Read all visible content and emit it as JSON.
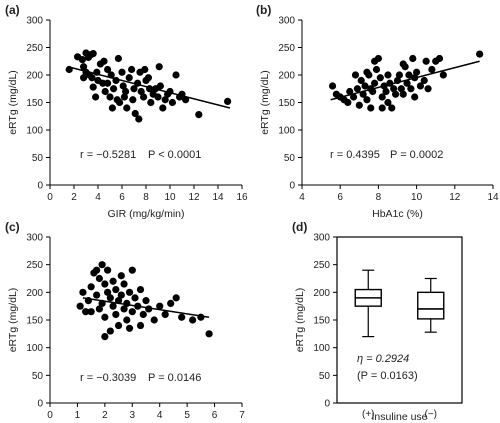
{
  "chart_data": [
    {
      "type": "scatter",
      "panel": "(a)",
      "xlabel": "GIR (mg/kg/min)",
      "ylabel": "eRTg (mg/dL)",
      "xlim": [
        0,
        16
      ],
      "ylim": [
        0,
        300
      ],
      "xticks": [
        0,
        2,
        4,
        6,
        8,
        10,
        12,
        14,
        16
      ],
      "yticks": [
        0,
        50,
        100,
        150,
        200,
        250,
        300
      ],
      "stat_r": "r = −0.5281",
      "stat_p": "P < 0.0001",
      "trendline": {
        "x": [
          1.5,
          15.0
        ],
        "y": [
          215,
          140
        ]
      },
      "points": [
        [
          1.6,
          210
        ],
        [
          2.3,
          233
        ],
        [
          2.7,
          228
        ],
        [
          2.8,
          215
        ],
        [
          3.0,
          240
        ],
        [
          3.2,
          232
        ],
        [
          3.4,
          237
        ],
        [
          3.6,
          239
        ],
        [
          3.3,
          200
        ],
        [
          3.5,
          195
        ],
        [
          3.6,
          178
        ],
        [
          3.9,
          205
        ],
        [
          4.0,
          190
        ],
        [
          4.2,
          220
        ],
        [
          4.4,
          185
        ],
        [
          4.6,
          170
        ],
        [
          4.8,
          210
        ],
        [
          5.0,
          160
        ],
        [
          5.1,
          200
        ],
        [
          5.3,
          175
        ],
        [
          5.5,
          190
        ],
        [
          5.7,
          230
        ],
        [
          5.8,
          150
        ],
        [
          6.0,
          205
        ],
        [
          6.1,
          180
        ],
        [
          6.3,
          170
        ],
        [
          6.4,
          140
        ],
        [
          6.6,
          195
        ],
        [
          6.8,
          210
        ],
        [
          7.0,
          175
        ],
        [
          7.1,
          130
        ],
        [
          7.3,
          185
        ],
        [
          7.5,
          205
        ],
        [
          7.6,
          170
        ],
        [
          7.8,
          160
        ],
        [
          8.0,
          190
        ],
        [
          8.2,
          195
        ],
        [
          8.4,
          150
        ],
        [
          8.6,
          165
        ],
        [
          8.8,
          175
        ],
        [
          9.0,
          160
        ],
        [
          9.2,
          180
        ],
        [
          9.4,
          140
        ],
        [
          9.6,
          155
        ],
        [
          9.8,
          165
        ],
        [
          10.0,
          170
        ],
        [
          10.2,
          150
        ],
        [
          10.5,
          200
        ],
        [
          10.8,
          160
        ],
        [
          11.0,
          165
        ],
        [
          11.3,
          155
        ],
        [
          12.4,
          128
        ],
        [
          14.8,
          152
        ],
        [
          3.0,
          205
        ],
        [
          4.8,
          185
        ],
        [
          5.2,
          140
        ],
        [
          5.6,
          155
        ],
        [
          6.2,
          160
        ],
        [
          7.9,
          210
        ],
        [
          8.3,
          175
        ],
        [
          9.1,
          215
        ],
        [
          4.5,
          225
        ],
        [
          3.8,
          160
        ],
        [
          7.4,
          120
        ],
        [
          6.9,
          155
        ],
        [
          2.8,
          195
        ]
      ]
    },
    {
      "type": "scatter",
      "panel": "(b)",
      "xlabel": "HbA1c (%)",
      "ylabel": "eRTg (mg/dL)",
      "xlim": [
        4,
        14
      ],
      "ylim": [
        0,
        300
      ],
      "xticks": [
        4,
        6,
        8,
        10,
        12,
        14
      ],
      "yticks": [
        0,
        50,
        100,
        150,
        200,
        250,
        300
      ],
      "stat_r": "r = 0.4395",
      "stat_p": "P = 0.0002",
      "trendline": {
        "x": [
          5.5,
          13.3
        ],
        "y": [
          155,
          225
        ]
      },
      "points": [
        [
          5.6,
          180
        ],
        [
          5.8,
          165
        ],
        [
          6.0,
          160
        ],
        [
          6.2,
          155
        ],
        [
          6.4,
          150
        ],
        [
          6.5,
          170
        ],
        [
          6.7,
          160
        ],
        [
          6.9,
          175
        ],
        [
          7.0,
          145
        ],
        [
          7.1,
          190
        ],
        [
          7.2,
          165
        ],
        [
          7.3,
          180
        ],
        [
          7.4,
          155
        ],
        [
          7.5,
          200
        ],
        [
          7.6,
          175
        ],
        [
          7.7,
          170
        ],
        [
          7.8,
          185
        ],
        [
          7.9,
          210
        ],
        [
          8.0,
          230
        ],
        [
          8.1,
          195
        ],
        [
          8.2,
          160
        ],
        [
          8.3,
          180
        ],
        [
          8.4,
          170
        ],
        [
          8.5,
          200
        ],
        [
          8.6,
          185
        ],
        [
          8.7,
          140
        ],
        [
          8.8,
          175
        ],
        [
          8.9,
          165
        ],
        [
          9.0,
          190
        ],
        [
          9.1,
          200
        ],
        [
          9.2,
          175
        ],
        [
          9.3,
          165
        ],
        [
          9.4,
          215
        ],
        [
          9.5,
          185
        ],
        [
          9.6,
          200
        ],
        [
          9.7,
          175
        ],
        [
          9.8,
          230
        ],
        [
          9.9,
          195
        ],
        [
          10.0,
          205
        ],
        [
          10.2,
          180
        ],
        [
          10.4,
          190
        ],
        [
          10.6,
          175
        ],
        [
          10.8,
          210
        ],
        [
          11.0,
          225
        ],
        [
          11.2,
          230
        ],
        [
          11.4,
          200
        ],
        [
          13.3,
          238
        ],
        [
          7.6,
          140
        ],
        [
          8.5,
          150
        ],
        [
          9.3,
          220
        ],
        [
          6.8,
          200
        ],
        [
          7.8,
          225
        ],
        [
          8.2,
          140
        ],
        [
          9.9,
          160
        ],
        [
          10.5,
          225
        ],
        [
          7.4,
          205
        ]
      ]
    },
    {
      "type": "scatter",
      "panel": "(c)",
      "xlabel": "Body muscle-to-fat ratio",
      "ylabel": "eRTg (mg/dL)",
      "xlim": [
        0,
        7
      ],
      "ylim": [
        0,
        300
      ],
      "xticks": [
        0,
        1,
        2,
        3,
        4,
        5,
        6,
        7
      ],
      "yticks": [
        0,
        50,
        100,
        150,
        200,
        250,
        300
      ],
      "stat_r": "r = −0.3039",
      "stat_p": "P = 0.0146",
      "trendline": {
        "x": [
          1.2,
          5.8
        ],
        "y": [
          190,
          155
        ]
      },
      "points": [
        [
          1.1,
          175
        ],
        [
          1.2,
          200
        ],
        [
          1.3,
          165
        ],
        [
          1.4,
          185
        ],
        [
          1.5,
          210
        ],
        [
          1.6,
          235
        ],
        [
          1.7,
          240
        ],
        [
          1.7,
          195
        ],
        [
          1.8,
          225
        ],
        [
          1.8,
          170
        ],
        [
          1.9,
          180
        ],
        [
          2.0,
          215
        ],
        [
          2.0,
          155
        ],
        [
          2.1,
          200
        ],
        [
          2.1,
          240
        ],
        [
          2.2,
          190
        ],
        [
          2.2,
          130
        ],
        [
          2.3,
          175
        ],
        [
          2.3,
          220
        ],
        [
          2.4,
          160
        ],
        [
          2.4,
          205
        ],
        [
          2.5,
          185
        ],
        [
          2.5,
          140
        ],
        [
          2.6,
          195
        ],
        [
          2.6,
          230
        ],
        [
          2.7,
          170
        ],
        [
          2.7,
          215
        ],
        [
          2.8,
          180
        ],
        [
          2.8,
          150
        ],
        [
          2.9,
          200
        ],
        [
          3.0,
          165
        ],
        [
          3.0,
          240
        ],
        [
          3.1,
          190
        ],
        [
          3.2,
          175
        ],
        [
          3.3,
          205
        ],
        [
          3.4,
          160
        ],
        [
          3.5,
          185
        ],
        [
          3.6,
          170
        ],
        [
          3.8,
          150
        ],
        [
          4.0,
          175
        ],
        [
          4.2,
          160
        ],
        [
          4.4,
          180
        ],
        [
          4.6,
          190
        ],
        [
          4.8,
          155
        ],
        [
          5.2,
          150
        ],
        [
          5.5,
          155
        ],
        [
          5.8,
          125
        ],
        [
          1.5,
          165
        ],
        [
          2.0,
          120
        ],
        [
          1.9,
          250
        ],
        [
          2.9,
          135
        ],
        [
          3.3,
          140
        ]
      ]
    },
    {
      "type": "box",
      "panel": "(d)",
      "xlabel": "Insuline use",
      "ylabel": "eRTg (mg/dL)",
      "ylim": [
        0,
        300
      ],
      "yticks": [
        0,
        50,
        100,
        150,
        200,
        250,
        300
      ],
      "categories": [
        "(+)",
        "(−)"
      ],
      "boxes": [
        {
          "min": 120,
          "q1": 175,
          "median": 190,
          "q3": 205,
          "max": 240
        },
        {
          "min": 128,
          "q1": 152,
          "median": 170,
          "q3": 200,
          "max": 225
        }
      ],
      "stat_r": "η = 0.2924",
      "stat_p": "(P = 0.0163)"
    }
  ]
}
